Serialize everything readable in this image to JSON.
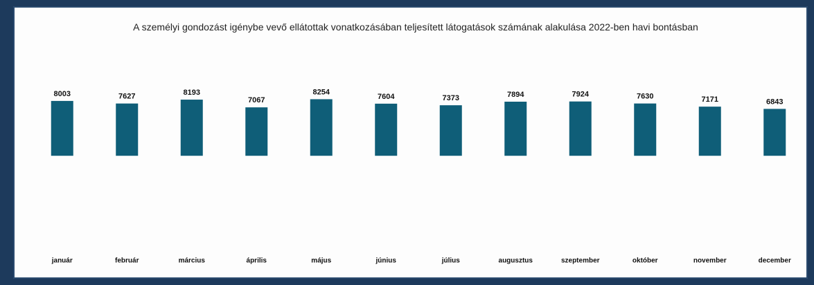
{
  "chart_data": {
    "type": "bar",
    "title": "A személyi gondozást igénybe vevő ellátottak vonatkozásában teljesített látogatások számának alakulása 2022-ben havi bontásban",
    "categories": [
      "január",
      "február",
      "március",
      "április",
      "május",
      "június",
      "július",
      "augusztus",
      "szeptember",
      "október",
      "november",
      "december"
    ],
    "values": [
      8003,
      7627,
      8193,
      7067,
      8254,
      7604,
      7373,
      7894,
      7924,
      7630,
      7171,
      6843
    ],
    "color": "#0f5e78",
    "ylim": [
      -12800,
      8600
    ]
  }
}
